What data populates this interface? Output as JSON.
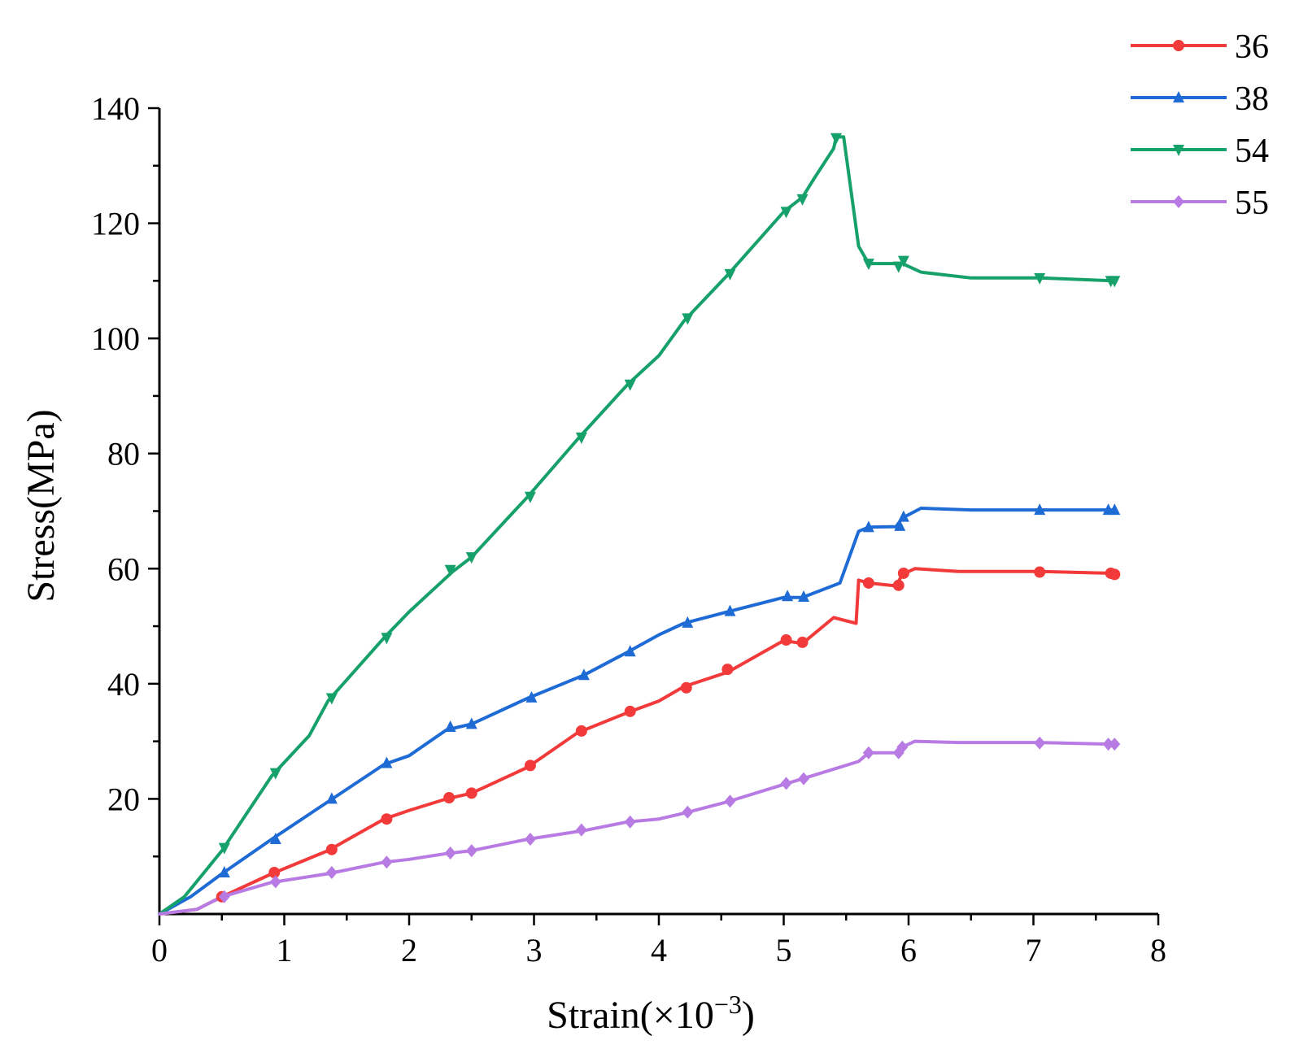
{
  "chart_data": {
    "type": "line",
    "title": "",
    "xlabel": "Strain(×10⁻³)",
    "xlabel_main": "Strain(×10",
    "xlabel_sup": "−3",
    "xlabel_close": ")",
    "ylabel": "Stress(MPa)",
    "xlim": [
      0,
      8
    ],
    "ylim": [
      0,
      140
    ],
    "x_ticks": [
      "0",
      "1",
      "2",
      "3",
      "4",
      "5",
      "6",
      "7",
      "8"
    ],
    "y_ticks": [
      "20",
      "40",
      "60",
      "80",
      "100",
      "120",
      "140"
    ],
    "legend_position": "top-right",
    "series": [
      {
        "name": "36",
        "color": "#f23a3a",
        "marker": "circle",
        "points": [
          [
            0,
            0
          ],
          [
            0.3,
            0.8
          ],
          [
            0.5,
            3
          ],
          [
            0.9,
            7
          ],
          [
            1.35,
            11
          ],
          [
            1.8,
            16.5
          ],
          [
            2.0,
            18
          ],
          [
            2.3,
            20
          ],
          [
            2.5,
            21
          ],
          [
            2.95,
            25.5
          ],
          [
            3.35,
            31.5
          ],
          [
            3.75,
            35
          ],
          [
            4.0,
            37
          ],
          [
            4.2,
            39.5
          ],
          [
            4.55,
            42
          ],
          [
            5.0,
            47.5
          ],
          [
            5.15,
            47
          ],
          [
            5.4,
            51.5
          ],
          [
            5.58,
            50.5
          ],
          [
            5.6,
            58
          ],
          [
            5.68,
            57.5
          ],
          [
            5.9,
            57
          ],
          [
            5.95,
            59
          ],
          [
            6.05,
            60
          ],
          [
            6.4,
            59.5
          ],
          [
            7.05,
            59.5
          ],
          [
            7.6,
            59.2
          ],
          [
            7.65,
            59
          ]
        ],
        "markers": [
          [
            0.5,
            3
          ],
          [
            0.92,
            7.2
          ],
          [
            1.38,
            11.2
          ],
          [
            1.82,
            16.5
          ],
          [
            2.32,
            20.2
          ],
          [
            2.5,
            21
          ],
          [
            2.97,
            25.8
          ],
          [
            3.38,
            31.8
          ],
          [
            3.77,
            35.2
          ],
          [
            4.22,
            39.3
          ],
          [
            4.55,
            42.5
          ],
          [
            5.02,
            47.6
          ],
          [
            5.15,
            47.2
          ],
          [
            5.68,
            57.5
          ],
          [
            5.92,
            57.1
          ],
          [
            5.96,
            59.2
          ],
          [
            7.05,
            59.4
          ],
          [
            7.62,
            59.2
          ],
          [
            7.65,
            59
          ]
        ]
      },
      {
        "name": "38",
        "color": "#1f6bd6",
        "marker": "triangle-up",
        "points": [
          [
            0,
            0
          ],
          [
            0.25,
            3
          ],
          [
            0.5,
            7
          ],
          [
            0.9,
            13
          ],
          [
            1.35,
            19.5
          ],
          [
            1.8,
            26
          ],
          [
            2.0,
            27.5
          ],
          [
            2.3,
            32
          ],
          [
            2.5,
            33
          ],
          [
            2.95,
            37.5
          ],
          [
            3.4,
            41.5
          ],
          [
            3.75,
            45.5
          ],
          [
            4.0,
            48.5
          ],
          [
            4.2,
            50.5
          ],
          [
            4.55,
            52.5
          ],
          [
            5.0,
            55
          ],
          [
            5.15,
            55
          ],
          [
            5.45,
            57.5
          ],
          [
            5.6,
            66.5
          ],
          [
            5.68,
            67.2
          ],
          [
            5.9,
            67.3
          ],
          [
            5.95,
            68.8
          ],
          [
            6.1,
            70.5
          ],
          [
            6.5,
            70.2
          ],
          [
            7.05,
            70.2
          ],
          [
            7.65,
            70.2
          ]
        ],
        "markers": [
          [
            0.52,
            7.2
          ],
          [
            0.93,
            13
          ],
          [
            1.38,
            20
          ],
          [
            1.82,
            26.2
          ],
          [
            2.33,
            32.5
          ],
          [
            2.5,
            33
          ],
          [
            2.98,
            37.6
          ],
          [
            3.4,
            41.5
          ],
          [
            3.77,
            45.6
          ],
          [
            4.23,
            50.6
          ],
          [
            4.57,
            52.6
          ],
          [
            5.03,
            55.2
          ],
          [
            5.16,
            55.1
          ],
          [
            5.68,
            67.2
          ],
          [
            5.93,
            67.4
          ],
          [
            5.96,
            69
          ],
          [
            7.05,
            70.2
          ],
          [
            7.6,
            70.2
          ],
          [
            7.65,
            70.2
          ]
        ]
      },
      {
        "name": "54",
        "color": "#16a06a",
        "marker": "triangle-down",
        "points": [
          [
            0,
            0
          ],
          [
            0.2,
            3
          ],
          [
            0.5,
            11
          ],
          [
            0.9,
            24
          ],
          [
            1.2,
            31
          ],
          [
            1.35,
            37
          ],
          [
            1.8,
            48
          ],
          [
            2.0,
            52.5
          ],
          [
            2.35,
            59.5
          ],
          [
            2.5,
            62
          ],
          [
            2.95,
            72.5
          ],
          [
            3.35,
            82.5
          ],
          [
            3.75,
            92
          ],
          [
            4.0,
            97
          ],
          [
            4.2,
            103
          ],
          [
            4.55,
            111
          ],
          [
            5.0,
            122
          ],
          [
            5.15,
            124.5
          ],
          [
            5.25,
            128
          ],
          [
            5.4,
            133
          ],
          [
            5.42,
            135
          ],
          [
            5.48,
            135
          ],
          [
            5.6,
            116
          ],
          [
            5.68,
            113
          ],
          [
            5.9,
            113
          ],
          [
            5.95,
            113
          ],
          [
            6.1,
            111.5
          ],
          [
            6.5,
            110.5
          ],
          [
            7.05,
            110.5
          ],
          [
            7.65,
            110
          ]
        ],
        "markers": [
          [
            0.52,
            11.5
          ],
          [
            0.93,
            24.5
          ],
          [
            1.38,
            37.5
          ],
          [
            1.82,
            48
          ],
          [
            2.33,
            59.8
          ],
          [
            2.5,
            62
          ],
          [
            2.97,
            72.5
          ],
          [
            3.38,
            82.8
          ],
          [
            3.77,
            92
          ],
          [
            4.23,
            103.5
          ],
          [
            4.57,
            111.2
          ],
          [
            5.02,
            122
          ],
          [
            5.15,
            124.2
          ],
          [
            5.42,
            134.8
          ],
          [
            5.68,
            113
          ],
          [
            5.92,
            112.5
          ],
          [
            5.96,
            113.5
          ],
          [
            7.05,
            110.5
          ],
          [
            7.62,
            110
          ],
          [
            7.65,
            110
          ]
        ]
      },
      {
        "name": "55",
        "color": "#b77be3",
        "marker": "diamond",
        "points": [
          [
            0,
            0
          ],
          [
            0.3,
            0.8
          ],
          [
            0.5,
            3
          ],
          [
            0.9,
            5.5
          ],
          [
            1.35,
            7
          ],
          [
            1.8,
            9
          ],
          [
            2.0,
            9.5
          ],
          [
            2.3,
            10.5
          ],
          [
            2.5,
            11
          ],
          [
            2.95,
            13
          ],
          [
            3.4,
            14.5
          ],
          [
            3.75,
            16
          ],
          [
            4.0,
            16.5
          ],
          [
            4.2,
            17.5
          ],
          [
            4.55,
            19.5
          ],
          [
            5.0,
            22.5
          ],
          [
            5.15,
            23.5
          ],
          [
            5.6,
            26.5
          ],
          [
            5.68,
            28
          ],
          [
            5.9,
            28
          ],
          [
            5.95,
            29
          ],
          [
            6.05,
            30
          ],
          [
            6.4,
            29.8
          ],
          [
            7.05,
            29.8
          ],
          [
            7.65,
            29.5
          ]
        ],
        "markers": [
          [
            0.52,
            3
          ],
          [
            0.93,
            5.6
          ],
          [
            1.38,
            7.2
          ],
          [
            1.82,
            9
          ],
          [
            2.33,
            10.6
          ],
          [
            2.5,
            11
          ],
          [
            2.97,
            13
          ],
          [
            3.38,
            14.6
          ],
          [
            3.77,
            16
          ],
          [
            4.23,
            17.7
          ],
          [
            4.57,
            19.6
          ],
          [
            5.02,
            22.7
          ],
          [
            5.16,
            23.5
          ],
          [
            5.68,
            28
          ],
          [
            5.92,
            28
          ],
          [
            5.95,
            29
          ],
          [
            7.05,
            29.7
          ],
          [
            7.6,
            29.5
          ],
          [
            7.65,
            29.5
          ]
        ]
      }
    ]
  }
}
